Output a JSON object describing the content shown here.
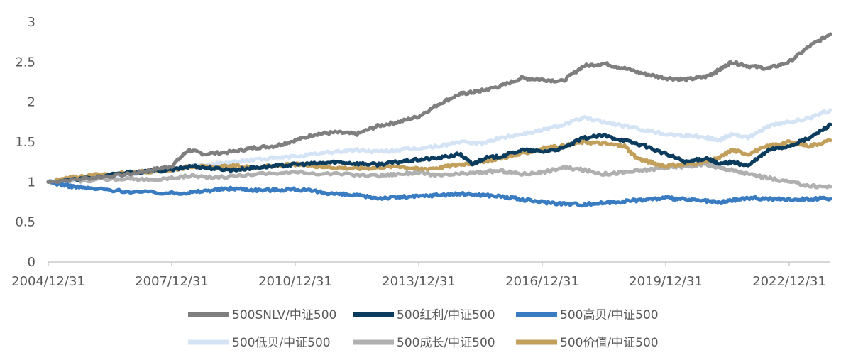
{
  "chart_data": {
    "type": "line",
    "x_categories": [
      "2004/12/31",
      "2007/12/31",
      "2010/12/31",
      "2013/12/31",
      "2016/12/31",
      "2019/12/31",
      "2022/12/31"
    ],
    "x_range": [
      2005.0,
      2024.0
    ],
    "ylim": [
      0,
      3
    ],
    "yticks": [
      "0",
      "0.5",
      "1",
      "1.5",
      "2",
      "2.5",
      "3"
    ],
    "grid": false,
    "legend_position": "bottom",
    "series": [
      {
        "name": "500SNLV/中证500",
        "color": "#7f7f7f",
        "x": [
          2005.0,
          2006.0,
          2007.0,
          2007.5,
          2008.0,
          2008.4,
          2008.8,
          2009.5,
          2010.0,
          2010.5,
          2011.0,
          2011.5,
          2012.0,
          2012.5,
          2013.0,
          2013.5,
          2014.0,
          2014.5,
          2015.0,
          2015.3,
          2015.6,
          2016.0,
          2016.5,
          2017.0,
          2017.5,
          2018.0,
          2018.5,
          2019.0,
          2019.5,
          2020.0,
          2020.5,
          2021.0,
          2021.3,
          2021.6,
          2022.0,
          2022.5,
          2023.0,
          2023.5,
          2024.0
        ],
        "y": [
          1.0,
          1.05,
          1.1,
          1.15,
          1.2,
          1.4,
          1.35,
          1.38,
          1.43,
          1.45,
          1.52,
          1.6,
          1.62,
          1.6,
          1.7,
          1.75,
          1.82,
          1.98,
          2.1,
          2.12,
          2.15,
          2.2,
          2.3,
          2.28,
          2.26,
          2.45,
          2.48,
          2.42,
          2.35,
          2.3,
          2.28,
          2.32,
          2.4,
          2.5,
          2.45,
          2.42,
          2.5,
          2.7,
          2.85
        ]
      },
      {
        "name": "500红利/中证500",
        "color": "#0b3c5d",
        "x": [
          2005.0,
          2006.0,
          2007.0,
          2008.0,
          2008.5,
          2009.0,
          2009.5,
          2010.0,
          2010.5,
          2011.0,
          2011.5,
          2012.0,
          2012.5,
          2013.0,
          2013.5,
          2014.0,
          2014.5,
          2015.0,
          2015.3,
          2015.6,
          2016.0,
          2016.5,
          2017.0,
          2017.5,
          2018.0,
          2018.5,
          2019.0,
          2019.5,
          2020.0,
          2020.5,
          2021.0,
          2021.3,
          2021.6,
          2022.0,
          2022.5,
          2023.0,
          2023.5,
          2024.0
        ],
        "y": [
          1.0,
          1.05,
          1.12,
          1.15,
          1.2,
          1.17,
          1.15,
          1.18,
          1.2,
          1.22,
          1.23,
          1.25,
          1.23,
          1.22,
          1.25,
          1.28,
          1.3,
          1.35,
          1.22,
          1.3,
          1.32,
          1.4,
          1.38,
          1.42,
          1.55,
          1.58,
          1.52,
          1.45,
          1.35,
          1.25,
          1.3,
          1.22,
          1.25,
          1.2,
          1.4,
          1.45,
          1.55,
          1.72
        ]
      },
      {
        "name": "500高贝/中证500",
        "color": "#3a7cc1",
        "x": [
          2005.0,
          2005.5,
          2006.0,
          2007.0,
          2008.0,
          2008.5,
          2009.0,
          2009.5,
          2010.0,
          2010.5,
          2011.0,
          2011.5,
          2012.0,
          2012.5,
          2013.0,
          2013.5,
          2014.0,
          2014.5,
          2015.0,
          2015.5,
          2016.0,
          2016.5,
          2017.0,
          2017.5,
          2018.0,
          2018.5,
          2019.0,
          2019.5,
          2020.0,
          2020.5,
          2021.0,
          2021.3,
          2021.6,
          2022.0,
          2022.5,
          2023.0,
          2023.5,
          2024.0
        ],
        "y": [
          1.0,
          0.95,
          0.92,
          0.88,
          0.86,
          0.87,
          0.9,
          0.92,
          0.9,
          0.9,
          0.91,
          0.88,
          0.85,
          0.83,
          0.8,
          0.81,
          0.82,
          0.84,
          0.85,
          0.84,
          0.82,
          0.78,
          0.75,
          0.73,
          0.72,
          0.74,
          0.76,
          0.78,
          0.8,
          0.78,
          0.76,
          0.74,
          0.77,
          0.8,
          0.79,
          0.78,
          0.79,
          0.79
        ]
      },
      {
        "name": "500低贝/中证500",
        "color": "#d4e4f4",
        "x": [
          2005.0,
          2006.0,
          2007.0,
          2008.0,
          2008.5,
          2009.0,
          2009.5,
          2010.0,
          2010.5,
          2011.0,
          2011.5,
          2012.0,
          2012.5,
          2013.0,
          2013.5,
          2014.0,
          2014.5,
          2015.0,
          2015.5,
          2016.0,
          2016.5,
          2017.0,
          2017.5,
          2018.0,
          2018.5,
          2019.0,
          2019.5,
          2020.0,
          2020.5,
          2021.0,
          2021.3,
          2021.6,
          2022.0,
          2022.5,
          2023.0,
          2023.5,
          2024.0
        ],
        "y": [
          1.0,
          1.05,
          1.1,
          1.15,
          1.2,
          1.22,
          1.25,
          1.28,
          1.3,
          1.32,
          1.35,
          1.38,
          1.4,
          1.38,
          1.4,
          1.42,
          1.45,
          1.5,
          1.48,
          1.55,
          1.6,
          1.65,
          1.72,
          1.8,
          1.75,
          1.7,
          1.65,
          1.6,
          1.58,
          1.56,
          1.52,
          1.6,
          1.55,
          1.7,
          1.75,
          1.8,
          1.9
        ]
      },
      {
        "name": "500成长/中证500",
        "color": "#b0b0b0",
        "x": [
          2005.0,
          2006.0,
          2007.0,
          2007.5,
          2008.0,
          2008.5,
          2009.0,
          2010.0,
          2011.0,
          2012.0,
          2013.0,
          2013.5,
          2014.0,
          2014.5,
          2015.0,
          2015.5,
          2016.0,
          2016.5,
          2017.0,
          2017.5,
          2018.0,
          2018.5,
          2019.0,
          2019.5,
          2020.0,
          2020.5,
          2021.0,
          2021.3,
          2021.6,
          2022.0,
          2022.5,
          2023.0,
          2023.5,
          2024.0
        ],
        "y": [
          1.0,
          1.02,
          1.05,
          1.02,
          1.05,
          1.08,
          1.05,
          1.1,
          1.12,
          1.1,
          1.08,
          1.1,
          1.12,
          1.08,
          1.1,
          1.12,
          1.14,
          1.1,
          1.12,
          1.18,
          1.15,
          1.1,
          1.12,
          1.15,
          1.18,
          1.2,
          1.22,
          1.18,
          1.15,
          1.1,
          1.05,
          1.0,
          0.95,
          0.94
        ]
      },
      {
        "name": "500价值/中证500",
        "color": "#c2a05b",
        "x": [
          2005.0,
          2005.5,
          2006.0,
          2007.0,
          2008.0,
          2008.5,
          2009.0,
          2009.5,
          2010.0,
          2010.5,
          2011.0,
          2011.5,
          2012.0,
          2012.5,
          2013.0,
          2013.5,
          2014.0,
          2014.5,
          2015.0,
          2015.5,
          2016.0,
          2016.5,
          2017.0,
          2017.5,
          2018.0,
          2018.5,
          2019.0,
          2019.3,
          2019.6,
          2020.0,
          2020.5,
          2021.0,
          2021.3,
          2021.6,
          2022.0,
          2022.5,
          2023.0,
          2023.5,
          2024.0
        ],
        "y": [
          1.0,
          1.05,
          1.08,
          1.12,
          1.15,
          1.2,
          1.18,
          1.2,
          1.18,
          1.2,
          1.22,
          1.2,
          1.18,
          1.17,
          1.18,
          1.2,
          1.16,
          1.18,
          1.22,
          1.25,
          1.3,
          1.35,
          1.42,
          1.45,
          1.5,
          1.48,
          1.45,
          1.3,
          1.25,
          1.2,
          1.22,
          1.25,
          1.3,
          1.4,
          1.35,
          1.45,
          1.5,
          1.45,
          1.52
        ]
      }
    ]
  }
}
